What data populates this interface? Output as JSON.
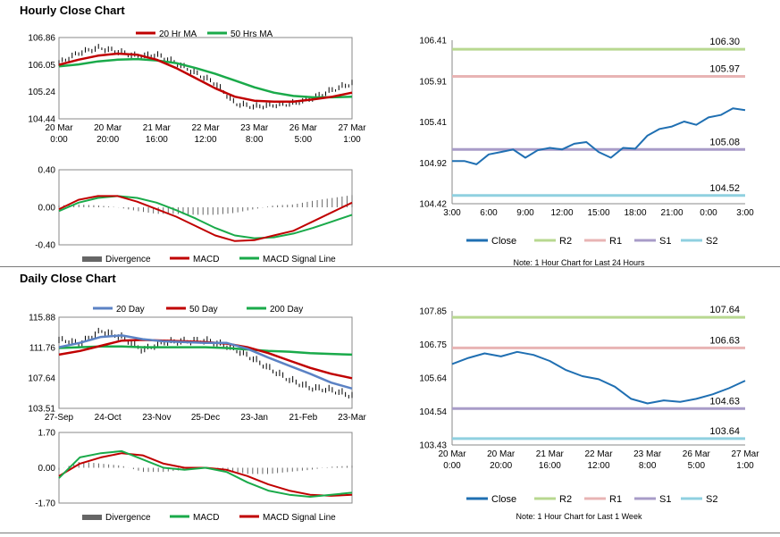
{
  "sections": {
    "hourly_title": "Hourly Close Chart",
    "daily_title": "Daily Close Chart"
  },
  "colors": {
    "ma_short": "#c00000",
    "ma_mid": "#c00000",
    "ma_green": "#1aaa4a",
    "ma_blue": "#5b82c4",
    "close": "#1f6fb2",
    "r2": "#b8d890",
    "r1": "#e8b4b4",
    "s1": "#a89cc8",
    "s2": "#8fd0e0",
    "divergence": "#666666"
  },
  "chart_data": [
    {
      "id": "hourly_price",
      "type": "line",
      "legend": [
        "20 Hr MA",
        "50 Hrs MA"
      ],
      "y_ticks": [
        "106.86",
        "106.05",
        "105.24",
        "104.44"
      ],
      "ylim": [
        104.44,
        106.86
      ],
      "x_ticks": [
        [
          "20 Mar",
          "0:00"
        ],
        [
          "20 Mar",
          "20:00"
        ],
        [
          "21 Mar",
          "16:00"
        ],
        [
          "22 Mar",
          "12:00"
        ],
        [
          "23 Mar",
          "8:00"
        ],
        [
          "26 Mar",
          "5:00"
        ],
        [
          "27 Mar",
          "1:00"
        ]
      ],
      "series": [
        {
          "name": "20 Hr MA",
          "values": [
            106.05,
            106.2,
            106.32,
            106.38,
            106.35,
            106.2,
            105.95,
            105.65,
            105.35,
            105.1,
            104.98,
            104.95,
            104.95,
            105.02,
            105.1,
            105.22
          ]
        },
        {
          "name": "50 Hrs MA",
          "values": [
            106.0,
            106.06,
            106.15,
            106.2,
            106.22,
            106.18,
            106.1,
            105.95,
            105.78,
            105.58,
            105.38,
            105.22,
            105.12,
            105.08,
            105.08,
            105.1
          ]
        },
        {
          "name": "Price",
          "values": [
            106.1,
            106.4,
            106.55,
            106.45,
            106.3,
            106.35,
            106.1,
            105.8,
            105.5,
            104.9,
            104.8,
            104.85,
            104.9,
            105.05,
            105.3,
            105.5
          ]
        }
      ]
    },
    {
      "id": "hourly_macd",
      "type": "line",
      "legend": [
        "Divergence",
        "MACD",
        "MACD Signal Line"
      ],
      "y_ticks": [
        "0.40",
        "0.00",
        "-0.40"
      ],
      "ylim": [
        -0.4,
        0.4
      ],
      "series": [
        {
          "name": "MACD",
          "values": [
            -0.02,
            0.08,
            0.12,
            0.12,
            0.06,
            -0.02,
            -0.1,
            -0.2,
            -0.3,
            -0.36,
            -0.35,
            -0.3,
            -0.25,
            -0.15,
            -0.05,
            0.05
          ]
        },
        {
          "name": "MACD Signal Line",
          "values": [
            -0.04,
            0.05,
            0.1,
            0.12,
            0.1,
            0.05,
            -0.03,
            -0.12,
            -0.22,
            -0.3,
            -0.33,
            -0.32,
            -0.28,
            -0.22,
            -0.15,
            -0.08
          ]
        },
        {
          "name": "Divergence",
          "values": [
            0.02,
            0.03,
            0.02,
            0.0,
            -0.04,
            -0.07,
            -0.07,
            -0.08,
            -0.08,
            -0.06,
            -0.02,
            0.02,
            0.03,
            0.07,
            0.1,
            0.13
          ]
        }
      ]
    },
    {
      "id": "hourly_levels",
      "type": "line",
      "y_ticks": [
        "106.41",
        "105.91",
        "105.41",
        "104.92",
        "104.42"
      ],
      "ylim": [
        104.42,
        106.41
      ],
      "x_ticks": [
        "3:00",
        "6:00",
        "9:00",
        "12:00",
        "15:00",
        "18:00",
        "21:00",
        "0:00",
        "3:00"
      ],
      "legend": [
        "Close",
        "R2",
        "R1",
        "S1",
        "S2"
      ],
      "note": "Note: 1 Hour Chart for Last 24 Hours",
      "levels": [
        {
          "name": "R2",
          "value": 106.3,
          "label": "106.30"
        },
        {
          "name": "R1",
          "value": 105.97,
          "label": "105.97"
        },
        {
          "name": "S1",
          "value": 105.08,
          "label": "105.08"
        },
        {
          "name": "S2",
          "value": 104.52,
          "label": "104.52"
        }
      ],
      "series": [
        {
          "name": "Close",
          "values": [
            104.94,
            104.94,
            104.9,
            105.02,
            105.05,
            105.08,
            104.98,
            105.07,
            105.1,
            105.08,
            105.15,
            105.17,
            105.05,
            104.98,
            105.1,
            105.09,
            105.25,
            105.33,
            105.36,
            105.42,
            105.38,
            105.47,
            105.5,
            105.58,
            105.56
          ]
        }
      ]
    },
    {
      "id": "daily_price",
      "type": "line",
      "legend": [
        "20 Day",
        "50 Day",
        "200 Day"
      ],
      "y_ticks": [
        "115.88",
        "111.76",
        "107.64",
        "103.51"
      ],
      "ylim": [
        103.51,
        115.88
      ],
      "x_ticks": [
        "27-Sep",
        "24-Oct",
        "23-Nov",
        "25-Dec",
        "23-Jan",
        "21-Feb",
        "23-Mar"
      ],
      "series": [
        {
          "name": "20 Day",
          "values": [
            111.8,
            112.4,
            113.2,
            113.4,
            112.9,
            112.6,
            112.5,
            112.4,
            112.4,
            111.6,
            110.4,
            109.3,
            108.2,
            107.0,
            106.2
          ]
        },
        {
          "name": "50 Day",
          "values": [
            110.8,
            111.3,
            112.0,
            112.7,
            112.8,
            112.7,
            112.6,
            112.5,
            112.3,
            111.8,
            111.0,
            110.0,
            109.0,
            108.2,
            107.6
          ]
        },
        {
          "name": "200 Day",
          "values": [
            111.7,
            111.8,
            111.9,
            111.9,
            111.8,
            111.8,
            111.8,
            111.8,
            111.7,
            111.5,
            111.3,
            111.2,
            111.0,
            110.9,
            110.8
          ]
        },
        {
          "name": "Price",
          "values": [
            112.8,
            112.3,
            114.0,
            113.2,
            111.4,
            112.5,
            112.6,
            112.7,
            112.0,
            110.7,
            109.0,
            107.4,
            106.3,
            106.0,
            105.2
          ]
        }
      ]
    },
    {
      "id": "daily_macd",
      "type": "line",
      "legend": [
        "Divergence",
        "MACD",
        "MACD Signal Line"
      ],
      "y_ticks": [
        "1.70",
        "0.00",
        "-1.70"
      ],
      "ylim": [
        -1.7,
        1.7
      ],
      "series": [
        {
          "name": "MACD",
          "values": [
            -0.5,
            0.5,
            0.7,
            0.8,
            0.4,
            0.0,
            -0.1,
            0.0,
            -0.2,
            -0.7,
            -1.1,
            -1.3,
            -1.4,
            -1.3,
            -1.2
          ]
        },
        {
          "name": "MACD Signal Line",
          "values": [
            -0.4,
            0.2,
            0.5,
            0.7,
            0.6,
            0.2,
            0.0,
            0.0,
            -0.1,
            -0.4,
            -0.8,
            -1.1,
            -1.3,
            -1.35,
            -1.3
          ]
        },
        {
          "name": "Divergence",
          "values": [
            -0.1,
            0.3,
            0.2,
            0.1,
            -0.2,
            -0.2,
            -0.1,
            0.0,
            -0.1,
            -0.3,
            -0.3,
            -0.2,
            -0.1,
            0.05,
            0.1
          ]
        }
      ]
    },
    {
      "id": "daily_levels",
      "type": "line",
      "y_ticks": [
        "107.85",
        "106.75",
        "105.64",
        "104.54",
        "103.43"
      ],
      "ylim": [
        103.43,
        107.85
      ],
      "x_ticks": [
        [
          "20 Mar",
          "0:00"
        ],
        [
          "20 Mar",
          "20:00"
        ],
        [
          "21 Mar",
          "16:00"
        ],
        [
          "22 Mar",
          "12:00"
        ],
        [
          "23 Mar",
          "8:00"
        ],
        [
          "26 Mar",
          "5:00"
        ],
        [
          "27 Mar",
          "1:00"
        ]
      ],
      "legend": [
        "Close",
        "R2",
        "R1",
        "S1",
        "S2"
      ],
      "note": "Note: 1 Hour Chart for Last 1 Week",
      "levels": [
        {
          "name": "R2",
          "value": 107.64,
          "label": "107.64"
        },
        {
          "name": "R1",
          "value": 106.63,
          "label": "106.63"
        },
        {
          "name": "S1",
          "value": 104.63,
          "label": "104.63"
        },
        {
          "name": "S2",
          "value": 103.64,
          "label": "103.64"
        }
      ],
      "series": [
        {
          "name": "Close",
          "values": [
            106.1,
            106.3,
            106.45,
            106.35,
            106.5,
            106.4,
            106.2,
            105.9,
            105.7,
            105.6,
            105.35,
            104.95,
            104.8,
            104.9,
            104.85,
            104.95,
            105.1,
            105.3,
            105.55
          ]
        }
      ]
    }
  ]
}
